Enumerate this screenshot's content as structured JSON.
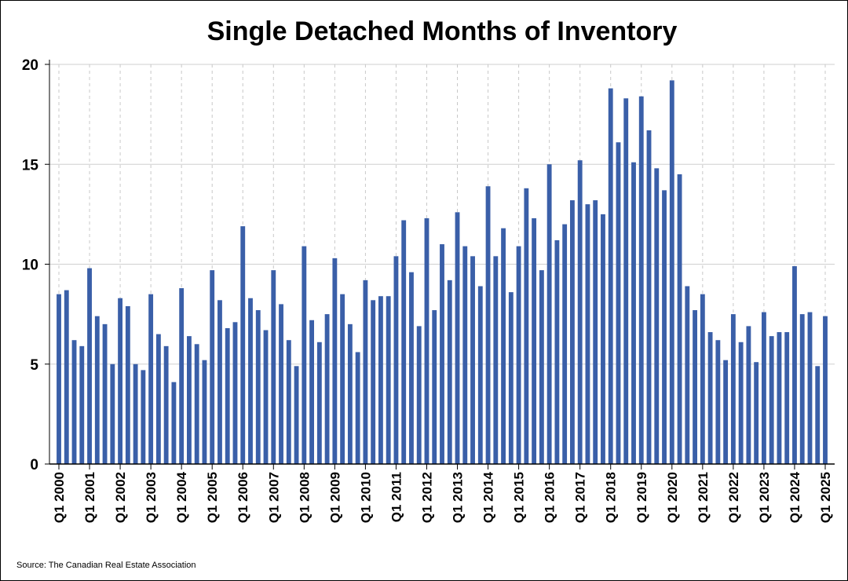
{
  "chart_data": {
    "type": "bar",
    "title": "Single Detached Months of Inventory",
    "xlabel": "",
    "ylabel": "",
    "ylim": [
      0,
      20
    ],
    "yticks": [
      "0",
      "5",
      "10",
      "15",
      "20"
    ],
    "grid": "on",
    "legend": "none",
    "bar_color": "#3a5fa8",
    "source": "Source: The Canadian Real Estate Association",
    "x_tick_labels": [
      "Q1 2000",
      "Q1 2001",
      "Q1 2002",
      "Q1 2003",
      "Q1 2004",
      "Q1 2005",
      "Q1 2006",
      "Q1 2007",
      "Q1 2008",
      "Q1 2009",
      "Q1 2010",
      "Q1 2011",
      "Q1 2012",
      "Q1 2013",
      "Q1 2014",
      "Q1 2015",
      "Q1 2016",
      "Q1 2017",
      "Q1 2018",
      "Q1 2019",
      "Q1 2020",
      "Q1 2021",
      "Q1 2022",
      "Q1 2023",
      "Q1 2024",
      "Q1 2025"
    ],
    "values": [
      8.5,
      8.7,
      6.2,
      5.9,
      9.8,
      7.4,
      7.0,
      5.0,
      8.3,
      7.9,
      5.0,
      4.7,
      8.5,
      6.5,
      5.9,
      4.1,
      8.8,
      6.4,
      6.0,
      5.2,
      9.7,
      8.2,
      6.8,
      7.1,
      11.9,
      8.3,
      7.7,
      6.7,
      9.7,
      8.0,
      6.2,
      4.9,
      10.9,
      7.2,
      6.1,
      7.5,
      10.3,
      8.5,
      7.0,
      5.6,
      9.2,
      8.2,
      8.4,
      8.4,
      10.4,
      12.2,
      9.6,
      6.9,
      12.3,
      7.7,
      11.0,
      9.2,
      12.6,
      10.9,
      10.4,
      8.9,
      13.9,
      10.4,
      11.8,
      8.6,
      10.9,
      13.8,
      12.3,
      9.7,
      15.0,
      11.2,
      12.0,
      13.2,
      15.2,
      13.0,
      13.2,
      12.5,
      18.8,
      16.1,
      18.3,
      15.1,
      18.4,
      16.7,
      14.8,
      13.7,
      19.2,
      14.5,
      8.9,
      7.7,
      8.5,
      6.6,
      6.2,
      5.2,
      7.5,
      6.1,
      6.9,
      5.1,
      7.6,
      6.4,
      6.6,
      6.6,
      9.9,
      7.5,
      7.6,
      4.9,
      7.4
    ]
  }
}
